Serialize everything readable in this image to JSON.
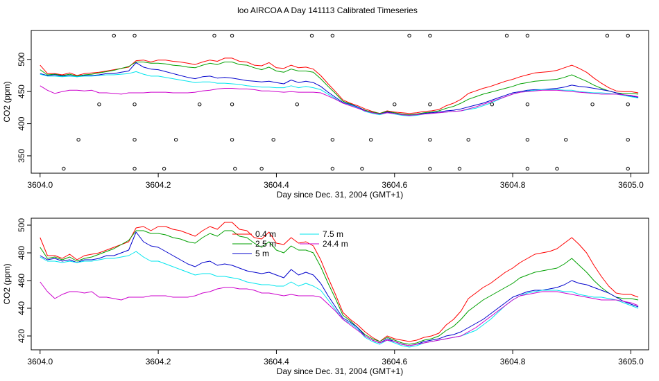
{
  "title": "loo AIRCOA A  Day 141113  Calibrated Timeseries",
  "colors": {
    "0.4 m": "#ff0000",
    "2.5 m": "#00a000",
    "5 m": "#0000cc",
    "7.5 m": "#00e5ee",
    "24.4 m": "#cc00cc",
    "axis": "#000000"
  },
  "chart_data": [
    {
      "type": "line",
      "xlabel": "Day since Dec. 31, 2004 (GMT+1)",
      "ylabel": "CO2 (ppm)",
      "xlim": [
        3603.985,
        3605.03
      ],
      "ylim": [
        323,
        545
      ],
      "xticks": [
        3604.0,
        3604.2,
        3604.4,
        3604.6,
        3604.8,
        3605.0
      ],
      "xtick_labels": [
        "3604.0",
        "3604.2",
        "3604.4",
        "3604.6",
        "3604.8",
        "3605.0"
      ],
      "yticks": [
        350,
        400,
        450,
        500
      ],
      "ytick_labels": [
        "350",
        "400",
        "450",
        "500"
      ],
      "x_start": 3604.0,
      "x_step": 0.0125,
      "series": [
        {
          "name": "0.4 m",
          "values": [
            491,
            478,
            478,
            476,
            479,
            475,
            478,
            479,
            480,
            482,
            484,
            486,
            488,
            498,
            499,
            496,
            499,
            499,
            497,
            496,
            494,
            492,
            496,
            499,
            497,
            502,
            502,
            497,
            496,
            491,
            490,
            495,
            487,
            486,
            491,
            487,
            488,
            485,
            475,
            462,
            450,
            437,
            432,
            428,
            423,
            419,
            416,
            420,
            418,
            417,
            416,
            417,
            419,
            420,
            422,
            428,
            432,
            438,
            447,
            451,
            455,
            458,
            462,
            466,
            469,
            473,
            476,
            479,
            480,
            481,
            483,
            487,
            491,
            486,
            480,
            471,
            463,
            456,
            451,
            450,
            450,
            448
          ]
        },
        {
          "name": "2.5 m",
          "values": [
            484,
            476,
            477,
            475,
            477,
            474,
            476,
            477,
            479,
            481,
            483,
            486,
            489,
            496,
            496,
            494,
            494,
            493,
            491,
            490,
            488,
            487,
            491,
            494,
            492,
            496,
            496,
            492,
            491,
            487,
            484,
            488,
            482,
            480,
            485,
            482,
            482,
            480,
            470,
            458,
            447,
            435,
            431,
            426,
            421,
            418,
            416,
            419,
            417,
            415,
            414,
            415,
            417,
            418,
            420,
            424,
            427,
            432,
            438,
            442,
            446,
            449,
            452,
            455,
            458,
            462,
            464,
            466,
            467,
            468,
            469,
            472,
            476,
            471,
            466,
            460,
            455,
            451,
            448,
            447,
            447,
            446
          ]
        },
        {
          "name": "5 m",
          "values": [
            478,
            475,
            476,
            474,
            475,
            473,
            475,
            475,
            476,
            478,
            478,
            480,
            482,
            495,
            488,
            485,
            484,
            481,
            478,
            475,
            472,
            470,
            473,
            474,
            471,
            472,
            471,
            469,
            467,
            466,
            465,
            466,
            464,
            462,
            468,
            464,
            466,
            464,
            458,
            449,
            441,
            433,
            430,
            426,
            420,
            417,
            415,
            418,
            416,
            414,
            413,
            414,
            416,
            417,
            418,
            420,
            421,
            423,
            426,
            429,
            432,
            436,
            440,
            444,
            448,
            450,
            452,
            453,
            453,
            454,
            455,
            457,
            460,
            458,
            457,
            455,
            453,
            451,
            448,
            445,
            443,
            441
          ]
        },
        {
          "name": "7.5 m",
          "values": [
            477,
            474,
            474,
            473,
            474,
            473,
            474,
            474,
            475,
            476,
            476,
            477,
            478,
            481,
            477,
            474,
            474,
            472,
            470,
            468,
            466,
            464,
            465,
            465,
            463,
            463,
            462,
            461,
            459,
            458,
            457,
            457,
            456,
            456,
            459,
            456,
            458,
            456,
            453,
            446,
            439,
            432,
            429,
            425,
            419,
            416,
            414,
            417,
            415,
            413,
            412,
            413,
            415,
            416,
            417,
            418,
            419,
            420,
            422,
            424,
            428,
            432,
            437,
            442,
            446,
            449,
            451,
            452,
            453,
            453,
            453,
            452,
            452,
            450,
            449,
            448,
            448,
            447,
            446,
            444,
            442,
            440
          ]
        },
        {
          "name": "24.4 m",
          "values": [
            459,
            452,
            447,
            450,
            452,
            452,
            451,
            452,
            448,
            448,
            447,
            446,
            448,
            448,
            448,
            449,
            449,
            449,
            448,
            448,
            448,
            449,
            451,
            452,
            454,
            455,
            455,
            454,
            454,
            453,
            451,
            451,
            450,
            449,
            450,
            449,
            449,
            449,
            448,
            443,
            438,
            432,
            428,
            424,
            420,
            417,
            415,
            417,
            416,
            414,
            413,
            414,
            415,
            416,
            417,
            418,
            419,
            420,
            423,
            426,
            430,
            434,
            438,
            442,
            446,
            449,
            450,
            451,
            452,
            452,
            452,
            451,
            450,
            449,
            448,
            447,
            446,
            446,
            446,
            445,
            444,
            442
          ]
        }
      ],
      "points": [
        [
          3604.04,
          330
        ],
        [
          3604.125,
          537
        ],
        [
          3604.16,
          330
        ],
        [
          3604.16,
          537
        ],
        [
          3604.21,
          330
        ],
        [
          3604.295,
          537
        ],
        [
          3604.325,
          537
        ],
        [
          3604.33,
          330
        ],
        [
          3604.375,
          330
        ],
        [
          3604.46,
          537
        ],
        [
          3604.495,
          330
        ],
        [
          3604.495,
          537
        ],
        [
          3604.545,
          330
        ],
        [
          3604.625,
          537
        ],
        [
          3604.66,
          330
        ],
        [
          3604.66,
          537
        ],
        [
          3604.71,
          330
        ],
        [
          3604.79,
          537
        ],
        [
          3604.825,
          330
        ],
        [
          3604.825,
          537
        ],
        [
          3604.875,
          330
        ],
        [
          3604.96,
          537
        ],
        [
          3604.995,
          330
        ],
        [
          3604.995,
          537
        ],
        [
          3604.065,
          375
        ],
        [
          3604.16,
          375
        ],
        [
          3604.23,
          375
        ],
        [
          3604.325,
          375
        ],
        [
          3604.395,
          375
        ],
        [
          3604.495,
          375
        ],
        [
          3604.56,
          375
        ],
        [
          3604.66,
          375
        ],
        [
          3604.725,
          375
        ],
        [
          3604.825,
          375
        ],
        [
          3604.89,
          375
        ],
        [
          3604.995,
          375
        ],
        [
          3604.1,
          430
        ],
        [
          3604.16,
          430
        ],
        [
          3604.27,
          430
        ],
        [
          3604.325,
          430
        ],
        [
          3604.435,
          430
        ],
        [
          3604.6,
          430
        ],
        [
          3604.66,
          430
        ],
        [
          3604.765,
          430
        ],
        [
          3604.825,
          430
        ],
        [
          3604.935,
          430
        ],
        [
          3604.995,
          430
        ]
      ]
    },
    {
      "type": "line",
      "xlabel": "Day since Dec. 31, 2004 (GMT+1)",
      "ylabel": "CO2 (ppm)",
      "xlim": [
        3603.985,
        3605.03
      ],
      "ylim": [
        410,
        505
      ],
      "xticks": [
        3604.0,
        3604.2,
        3604.4,
        3604.6,
        3604.8,
        3605.0
      ],
      "xtick_labels": [
        "3604.0",
        "3604.2",
        "3604.4",
        "3604.6",
        "3604.8",
        "3605.0"
      ],
      "yticks": [
        420,
        440,
        460,
        480,
        500
      ],
      "ytick_labels": [
        "420",
        "440",
        "460",
        "480",
        "500"
      ],
      "legend": {
        "position": "top-center",
        "entries": [
          "0.4 m",
          "2.5 m",
          "5 m",
          "7.5 m",
          "24.4 m"
        ]
      },
      "x_start": 3604.0,
      "x_step": 0.0125,
      "series": [
        {
          "name": "0.4 m",
          "values": [
            491,
            478,
            478,
            476,
            479,
            475,
            478,
            479,
            480,
            482,
            484,
            486,
            488,
            498,
            499,
            496,
            499,
            499,
            497,
            496,
            494,
            492,
            496,
            499,
            497,
            502,
            502,
            497,
            496,
            491,
            490,
            495,
            487,
            486,
            491,
            487,
            488,
            485,
            475,
            462,
            450,
            437,
            432,
            428,
            423,
            419,
            416,
            420,
            418,
            417,
            416,
            417,
            419,
            420,
            422,
            428,
            432,
            438,
            447,
            451,
            455,
            458,
            462,
            466,
            469,
            473,
            476,
            479,
            480,
            481,
            483,
            487,
            491,
            486,
            480,
            471,
            463,
            456,
            451,
            450,
            450,
            448
          ]
        },
        {
          "name": "2.5 m",
          "values": [
            484,
            476,
            477,
            475,
            477,
            474,
            476,
            477,
            479,
            481,
            483,
            486,
            489,
            496,
            496,
            494,
            494,
            493,
            491,
            490,
            488,
            487,
            491,
            494,
            492,
            496,
            496,
            492,
            491,
            487,
            484,
            488,
            482,
            480,
            485,
            482,
            482,
            480,
            470,
            458,
            447,
            435,
            431,
            426,
            421,
            418,
            416,
            419,
            417,
            415,
            414,
            415,
            417,
            418,
            420,
            424,
            427,
            432,
            438,
            442,
            446,
            449,
            452,
            455,
            458,
            462,
            464,
            466,
            467,
            468,
            469,
            472,
            476,
            471,
            466,
            460,
            455,
            451,
            448,
            447,
            447,
            446
          ]
        },
        {
          "name": "5 m",
          "values": [
            478,
            475,
            476,
            474,
            475,
            473,
            475,
            475,
            476,
            478,
            478,
            480,
            482,
            495,
            488,
            485,
            484,
            481,
            478,
            475,
            472,
            470,
            473,
            474,
            471,
            472,
            471,
            469,
            467,
            466,
            465,
            466,
            464,
            462,
            468,
            464,
            466,
            464,
            458,
            449,
            441,
            433,
            430,
            426,
            420,
            417,
            415,
            418,
            416,
            414,
            413,
            414,
            416,
            417,
            418,
            420,
            421,
            423,
            426,
            429,
            432,
            436,
            440,
            444,
            448,
            450,
            452,
            453,
            453,
            454,
            455,
            457,
            460,
            458,
            457,
            455,
            453,
            451,
            448,
            445,
            443,
            441
          ]
        },
        {
          "name": "7.5 m",
          "values": [
            477,
            474,
            474,
            473,
            474,
            473,
            474,
            474,
            475,
            476,
            476,
            477,
            478,
            481,
            477,
            474,
            474,
            472,
            470,
            468,
            466,
            464,
            465,
            465,
            463,
            463,
            462,
            461,
            459,
            458,
            457,
            457,
            456,
            456,
            459,
            456,
            458,
            456,
            453,
            446,
            439,
            432,
            429,
            425,
            419,
            416,
            414,
            417,
            415,
            413,
            412,
            413,
            415,
            416,
            417,
            418,
            419,
            420,
            422,
            424,
            428,
            432,
            437,
            442,
            446,
            449,
            451,
            452,
            453,
            453,
            453,
            452,
            452,
            450,
            449,
            448,
            448,
            447,
            446,
            444,
            442,
            440
          ]
        },
        {
          "name": "24.4 m",
          "values": [
            459,
            452,
            447,
            450,
            452,
            452,
            451,
            452,
            448,
            448,
            447,
            446,
            448,
            448,
            448,
            449,
            449,
            449,
            448,
            448,
            448,
            449,
            451,
            452,
            454,
            455,
            455,
            454,
            454,
            453,
            451,
            451,
            450,
            449,
            450,
            449,
            449,
            449,
            448,
            443,
            438,
            432,
            428,
            424,
            420,
            417,
            415,
            417,
            416,
            414,
            413,
            414,
            415,
            416,
            417,
            418,
            419,
            420,
            423,
            426,
            430,
            434,
            438,
            442,
            446,
            449,
            450,
            451,
            452,
            452,
            452,
            451,
            450,
            449,
            448,
            447,
            446,
            446,
            446,
            445,
            444,
            442
          ]
        }
      ]
    }
  ]
}
